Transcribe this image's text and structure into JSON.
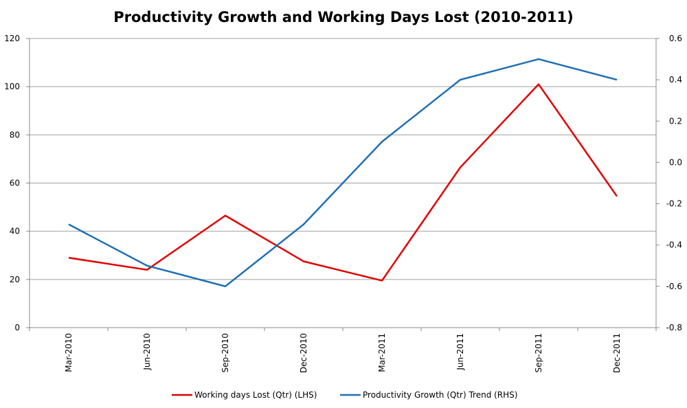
{
  "chart_data": {
    "type": "line",
    "title": "Productivity Growth and Working Days Lost (2010-2011)",
    "categories": [
      "Mar-2010",
      "Jun-2010",
      "Sep-2010",
      "Dec-2010",
      "Mar-2011",
      "Jun-2011",
      "Sep-2011",
      "Dec-2011"
    ],
    "y_left": {
      "min": 0,
      "max": 120,
      "ticks": [
        "0",
        "20",
        "40",
        "60",
        "80",
        "100",
        "120"
      ]
    },
    "y_right": {
      "min": -0.8,
      "max": 0.6,
      "ticks": [
        "-0.8",
        "-0.6",
        "-0.4",
        "-0.2",
        "0.0",
        "0.2",
        "0.4",
        "0.6"
      ]
    },
    "grid": true,
    "legend_position": "bottom",
    "series": [
      {
        "name": "Working days Lost (Qtr) (LHS)",
        "axis": "left",
        "color": "#e00000",
        "values": [
          29,
          24,
          46.5,
          27.5,
          19.5,
          66.5,
          101,
          54.5
        ]
      },
      {
        "name": "Productivity Growth (Qtr) Trend (RHS)",
        "axis": "right",
        "color": "#1f6fb4",
        "values": [
          -0.3,
          -0.5,
          -0.6,
          -0.3,
          0.1,
          0.4,
          0.5,
          0.4
        ]
      }
    ]
  }
}
